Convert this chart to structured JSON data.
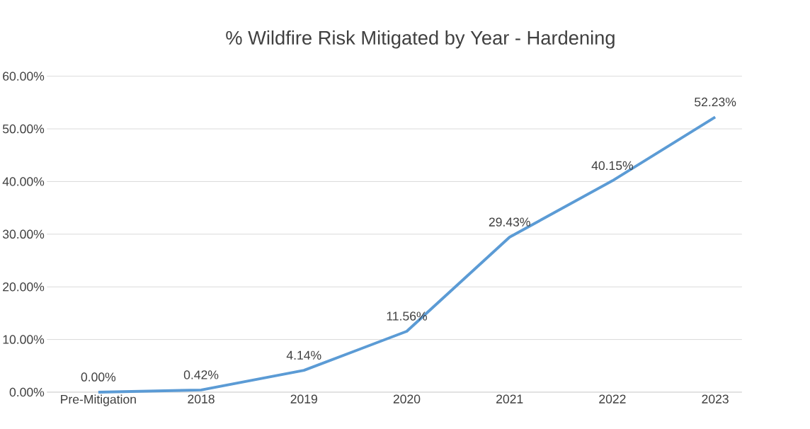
{
  "chart_data": {
    "type": "line",
    "title": "% Wildfire Risk Mitigated by Year - Hardening",
    "categories": [
      "Pre-Mitigation",
      "2018",
      "2019",
      "2020",
      "2021",
      "2022",
      "2023"
    ],
    "series": [
      {
        "color": "#5b9bd5",
        "values": [
          0,
          0.42,
          4.14,
          11.56,
          29.43,
          40.15,
          52.23
        ],
        "value_labels": [
          "0.00%",
          "0.42%",
          "4.14%",
          "11.56%",
          "29.43%",
          "40.15%",
          "52.23%"
        ]
      }
    ],
    "ylim": [
      0,
      60
    ],
    "yticks": [
      {
        "value": 0,
        "label": "0.00%"
      },
      {
        "value": 10,
        "label": "10.00%"
      },
      {
        "value": 20,
        "label": "20.00%"
      },
      {
        "value": 30,
        "label": "30.00%"
      },
      {
        "value": 40,
        "label": "40.00%"
      },
      {
        "value": 50,
        "label": "50.00%"
      },
      {
        "value": 60,
        "label": "60.00%"
      }
    ],
    "grid": "y",
    "marker": "none",
    "line_style": "solid"
  }
}
